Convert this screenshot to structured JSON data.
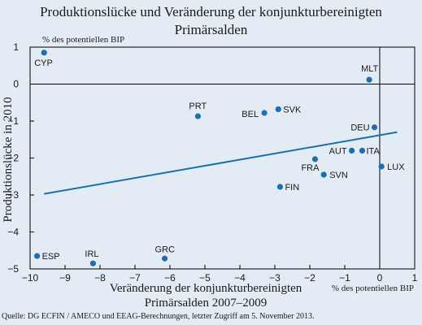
{
  "title_line1": "Produktionslücke und Veränderung der konjunkturbereinigten",
  "title_line2": "Primärsalden",
  "source": "Quelle: DG ECFIN / AMECO und EEAG-Berechnungen, letzter Zugriff am 5. November 2013.",
  "colors": {
    "background": "#e3ecf4",
    "points": "#1b6fb3",
    "trendline": "#1b6fb3",
    "axis": "#000000"
  },
  "chart_data": {
    "type": "scatter",
    "title": "Produktionslücke und Veränderung der konjunkturbereinigten Primärsalden",
    "xlabel_line1": "Veränderung der konjunkturbereinigten",
    "xlabel_line2": "Primärsalden 2007–2009",
    "xunit": "% des potentiellen BIP",
    "ylabel": "Produktionslücke in 2010",
    "yunit": "% des potentiellen BIP",
    "xlim": [
      -10,
      1
    ],
    "ylim": [
      -5,
      1
    ],
    "xticks": [
      -10,
      -9,
      -8,
      -7,
      -6,
      -5,
      -4,
      -3,
      -2,
      -1,
      0,
      1
    ],
    "yticks": [
      -5,
      -4,
      -3,
      -2,
      -1,
      0,
      1
    ],
    "grid": false,
    "points": [
      {
        "label": "CYP",
        "x": -9.6,
        "y": 0.85
      },
      {
        "label": "MLT",
        "x": -0.3,
        "y": 0.12
      },
      {
        "label": "PRT",
        "x": -5.2,
        "y": -0.87
      },
      {
        "label": "BEL",
        "x": -3.3,
        "y": -0.78
      },
      {
        "label": "SVK",
        "x": -2.9,
        "y": -0.68
      },
      {
        "label": "DEU",
        "x": -0.15,
        "y": -1.17
      },
      {
        "label": "AUT",
        "x": -0.8,
        "y": -1.8
      },
      {
        "label": "ITA",
        "x": -0.5,
        "y": -1.8
      },
      {
        "label": "FRA",
        "x": -1.85,
        "y": -2.03
      },
      {
        "label": "LUX",
        "x": 0.05,
        "y": -2.23
      },
      {
        "label": "SVN",
        "x": -1.6,
        "y": -2.45
      },
      {
        "label": "FIN",
        "x": -2.85,
        "y": -2.78
      },
      {
        "label": "ESP",
        "x": -9.8,
        "y": -4.65
      },
      {
        "label": "IRL",
        "x": -8.2,
        "y": -4.85
      },
      {
        "label": "GRC",
        "x": -6.15,
        "y": -4.72
      }
    ],
    "trendline": {
      "x": [
        -9.6,
        0.5
      ],
      "y": [
        -2.97,
        -1.3
      ]
    }
  }
}
